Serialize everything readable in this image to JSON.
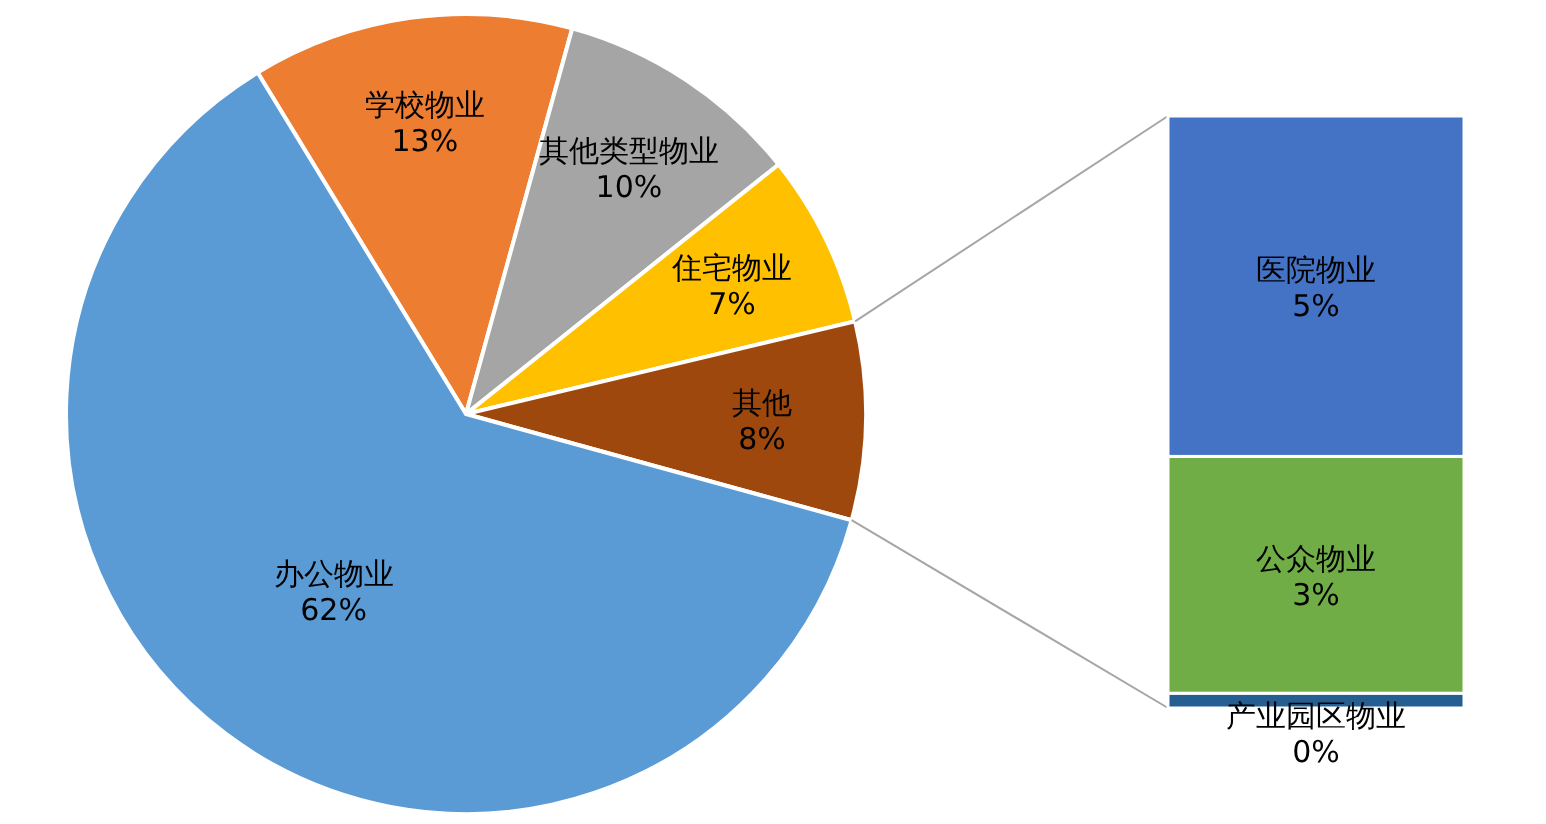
{
  "chart_data": [
    {
      "type": "pie",
      "categories": [
        "学校物业",
        "其他类型物业",
        "住宅物业",
        "其他",
        "办公物业"
      ],
      "values": [
        13,
        10,
        7,
        8,
        62
      ],
      "colors": [
        "#ed7d31",
        "#a5a5a5",
        "#ffc000",
        "#9e480e",
        "#5b9bd5"
      ],
      "value_labels": [
        "13%",
        "10%",
        "7%",
        "8%",
        "62%"
      ]
    },
    {
      "type": "bar",
      "stacked": true,
      "categories": [
        null
      ],
      "series": [
        {
          "name": "产业园区物业",
          "color": "#255e91",
          "values": [
            0.2
          ],
          "value_labels": [
            "0%"
          ]
        },
        {
          "name": "公众物业",
          "color": "#70ad47",
          "values": [
            3.2
          ],
          "value_labels": [
            "3%"
          ]
        },
        {
          "name": "医院物业",
          "color": "#4472c4",
          "values": [
            4.6
          ],
          "value_labels": [
            "5%"
          ]
        }
      ]
    }
  ]
}
